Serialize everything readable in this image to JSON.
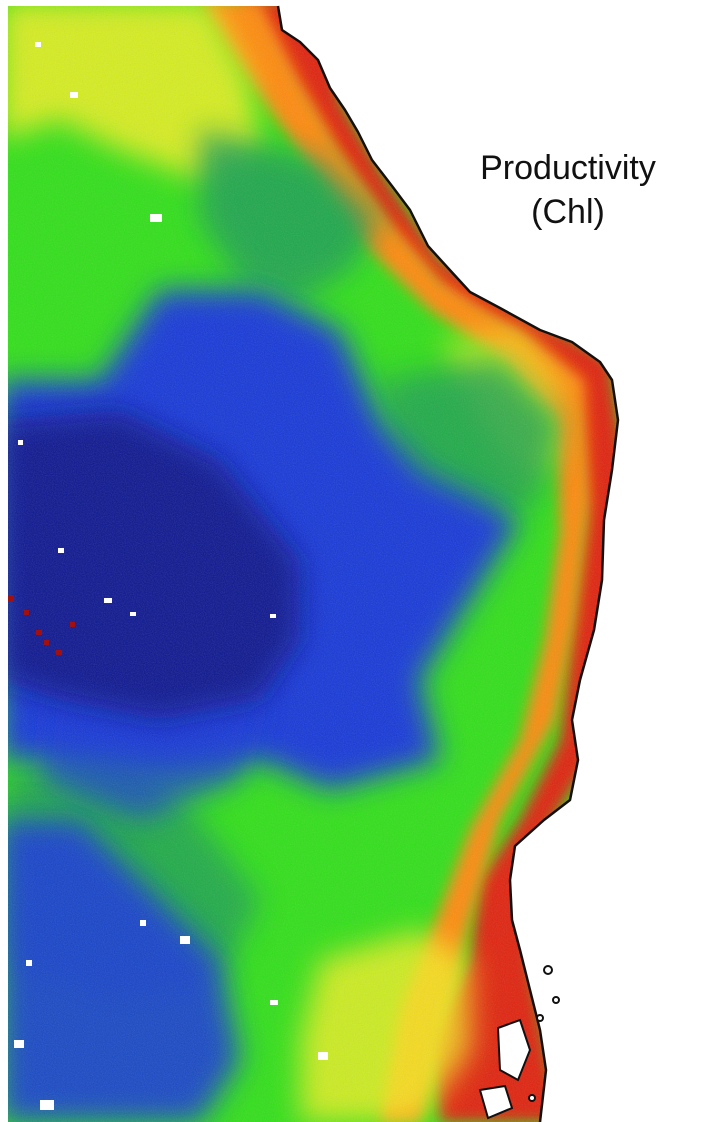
{
  "map": {
    "title_line1": "Productivity",
    "title_line2": "(Chl)",
    "colors": {
      "land": "#ffffff",
      "coast_line": "#111111",
      "chl_very_high": "#e0200a",
      "chl_high": "#ff8a10",
      "chl_elevated": "#f4f020",
      "chl_moderate": "#30e018",
      "chl_low_moderate": "#1a9e55",
      "chl_low": "#1438d8",
      "chl_very_low": "#0a1890",
      "cloud_mask": "#ffffff",
      "border": "#0b0f6a"
    }
  }
}
